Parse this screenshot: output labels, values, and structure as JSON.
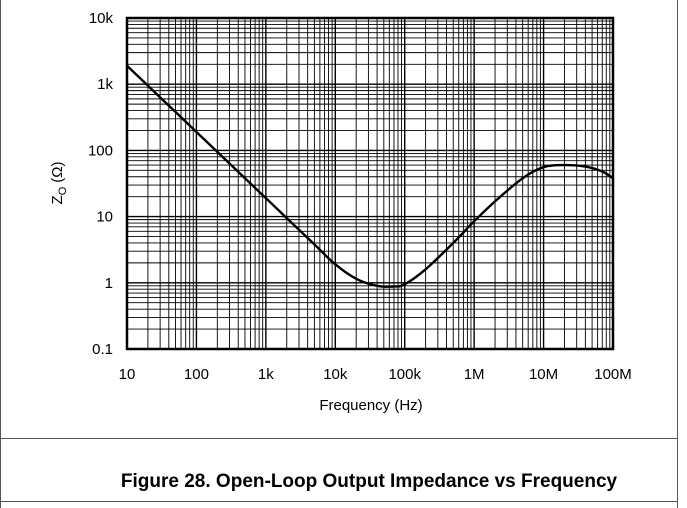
{
  "chart_data": {
    "type": "line",
    "title": "Figure 28. Open-Loop Output Impedance vs Frequency",
    "xlabel": "Frequency (Hz)",
    "ylabel_main": "Z",
    "ylabel_sub": "O",
    "ylabel_unit": "(Ω)",
    "x_scale": "log",
    "y_scale": "log",
    "xlim": [
      10,
      100000000
    ],
    "ylim": [
      0.1,
      10000
    ],
    "grid": true,
    "x_ticks": [
      {
        "value": 10,
        "label": "10"
      },
      {
        "value": 100,
        "label": "100"
      },
      {
        "value": 1000,
        "label": "1k"
      },
      {
        "value": 10000,
        "label": "10k"
      },
      {
        "value": 100000,
        "label": "100k"
      },
      {
        "value": 1000000,
        "label": "1M"
      },
      {
        "value": 10000000,
        "label": "10M"
      },
      {
        "value": 100000000,
        "label": "100M"
      }
    ],
    "y_ticks": [
      {
        "value": 0.1,
        "label": "0.1"
      },
      {
        "value": 1,
        "label": "1"
      },
      {
        "value": 10,
        "label": "10"
      },
      {
        "value": 100,
        "label": "100"
      },
      {
        "value": 1000,
        "label": "1k"
      },
      {
        "value": 10000,
        "label": "10k"
      }
    ],
    "series": [
      {
        "x": [
          10,
          20,
          50,
          100,
          200,
          500,
          1000,
          2000,
          5000,
          10000,
          20000,
          40000,
          70000,
          100000,
          200000,
          500000,
          1000000,
          2000000,
          5000000,
          10000000,
          20000000,
          40000000,
          70000000,
          100000000
        ],
        "y": [
          1900,
          950,
          380,
          190,
          95,
          38,
          19,
          9.5,
          3.8,
          1.9,
          1.15,
          0.9,
          0.88,
          0.95,
          1.6,
          4.0,
          8.5,
          17,
          38,
          56,
          60,
          57,
          48,
          38
        ]
      }
    ]
  }
}
